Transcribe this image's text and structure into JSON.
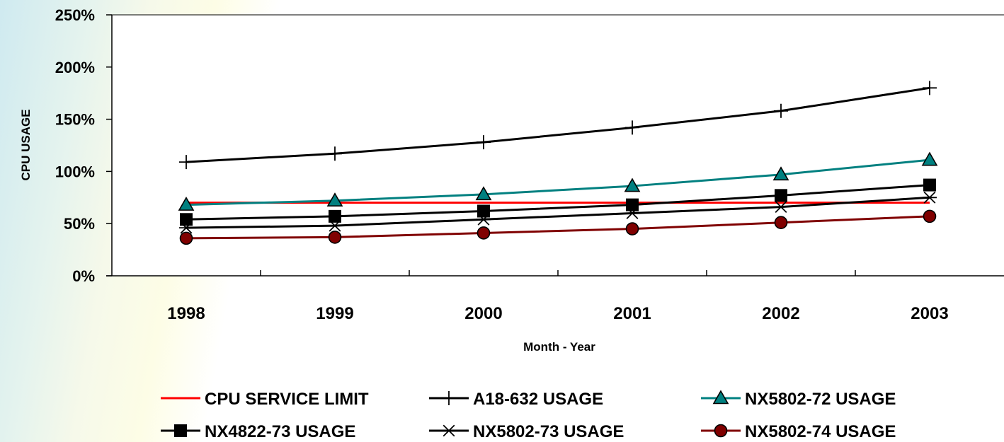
{
  "chart_data": {
    "type": "line",
    "x": [
      "1998",
      "1999",
      "2000",
      "2001",
      "2002",
      "2003"
    ],
    "xlabel": "Month - Year",
    "ylabel": "CPU USAGE",
    "ylim": [
      0,
      250
    ],
    "ytick_values": [
      0,
      50,
      100,
      150,
      200,
      250
    ],
    "ytick_labels": [
      "0%",
      "50%",
      "100%",
      "150%",
      "200%",
      "250%"
    ],
    "grid": false,
    "legend_position": "bottom",
    "series": [
      {
        "name": "CPU SERVICE LIMIT",
        "values": [
          70,
          70,
          70,
          70,
          70,
          70
        ],
        "color": "#ff0000",
        "marker": "none"
      },
      {
        "name": "A18-632 USAGE",
        "values": [
          109,
          117,
          128,
          142,
          158,
          180
        ],
        "color": "#000000",
        "marker": "plus"
      },
      {
        "name": "NX5802-72 USAGE",
        "values": [
          68,
          72,
          78,
          86,
          97,
          111
        ],
        "color": "#008080",
        "marker": "triangle"
      },
      {
        "name": "NX4822-73 USAGE",
        "values": [
          54,
          57,
          62,
          68,
          77,
          87
        ],
        "color": "#000000",
        "marker": "square"
      },
      {
        "name": "NX5802-73 USAGE",
        "values": [
          46,
          48,
          54,
          60,
          66,
          75
        ],
        "color": "#000000",
        "marker": "asterisk"
      },
      {
        "name": "NX5802-74 USAGE",
        "values": [
          36,
          37,
          41,
          45,
          51,
          57
        ],
        "color": "#800000",
        "marker": "circle"
      }
    ]
  }
}
